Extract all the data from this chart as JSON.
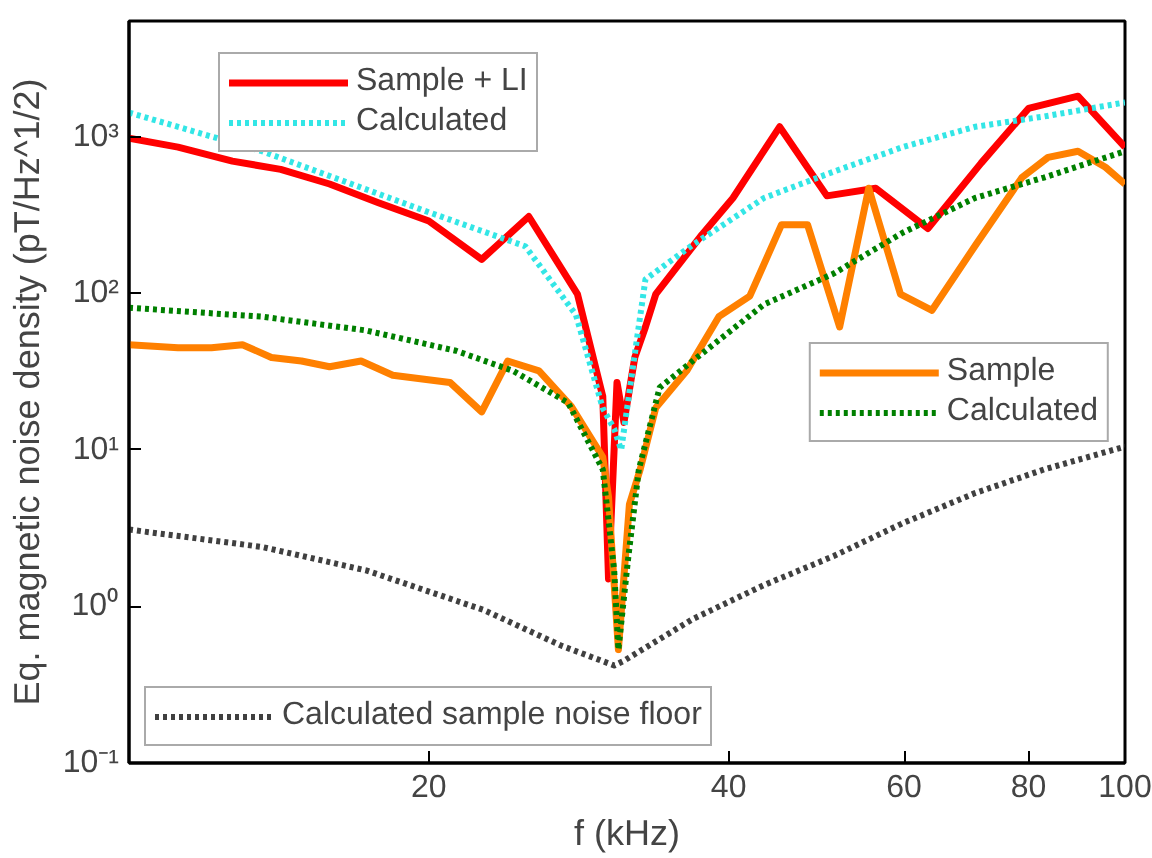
{
  "chart_data": {
    "type": "line",
    "xlabel": "f (kHz)",
    "ylabel": "Eq. magnetic noise density (pT/Hz^1/2)",
    "log": "xy",
    "grid": false,
    "legend": "bottom left",
    "xlim": [
      10,
      100
    ],
    "ylim": [
      0.1,
      5500
    ],
    "xticks": [
      20,
      40,
      60,
      80,
      100
    ],
    "yticks": [
      {
        "value": 0.1,
        "label": "10⁻¹"
      },
      {
        "value": 1,
        "label": "10⁰"
      },
      {
        "value": 10,
        "label": "10¹"
      },
      {
        "value": 100,
        "label": "10²"
      },
      {
        "value": 1000,
        "label": "10³"
      }
    ],
    "series": [
      {
        "name": "Sample + LI",
        "color": "#ff0000",
        "line_style": "solid",
        "x": [
          10,
          11.2,
          12.7,
          14.2,
          15.9,
          17.8,
          20,
          22.6,
          25.2,
          28.2,
          29.9,
          30.3,
          30.9,
          31.4,
          32.2,
          33,
          33.8,
          37.6,
          40.4,
          45,
          50.2,
          56.2,
          63.4,
          71.7,
          80,
          89.7,
          100
        ],
        "values": [
          980,
          860,
          700,
          620,
          500,
          380,
          290,
          165,
          310,
          99,
          22,
          1.5,
          27,
          15,
          39,
          61,
          99,
          237,
          407,
          1160,
          420,
          470,
          260,
          680,
          1520,
          1820,
          860
        ]
      },
      {
        "name": "Calculated",
        "color": "#33e6e6",
        "line_style": "dotted",
        "x": [
          10,
          13.6,
          20,
          25,
          28.1,
          29.9,
          30.7,
          31.2,
          33,
          36.8,
          43.4,
          51,
          59.8,
          70.7,
          82.9,
          100
        ],
        "values": [
          1430,
          810,
          330,
          200,
          73,
          18.5,
          13.6,
          10,
          123,
          204,
          407,
          600,
          860,
          1160,
          1350,
          1660
        ]
      },
      {
        "name": "Sample",
        "color": "#ff8000",
        "line_style": "solid",
        "x": [
          10,
          11.2,
          12.1,
          13,
          13.9,
          14.9,
          15.9,
          17.1,
          18.4,
          21,
          22.6,
          24,
          25.8,
          27.8,
          29.9,
          30.3,
          31,
          31.8,
          32.6,
          33.8,
          36.3,
          39.1,
          42,
          45.2,
          48,
          51.7,
          55.3,
          59.5,
          64,
          70.8,
          78.8,
          83.7,
          89.7,
          95.6,
          100
        ],
        "values": [
          47,
          45,
          45,
          47,
          39,
          37,
          34,
          37,
          30,
          27,
          17.5,
          37,
          32,
          19,
          9,
          5,
          0.53,
          4.5,
          7.5,
          18.6,
          32,
          71,
          96,
          275,
          275,
          61,
          470,
          99,
          78,
          204,
          550,
          740,
          810,
          640,
          500
        ]
      },
      {
        "name": "Calculated",
        "color": "#008000",
        "line_style": "dotted",
        "x": [
          10,
          13.6,
          17.3,
          21.3,
          24.3,
          27.6,
          29.9,
          30.7,
          31,
          31.7,
          32.5,
          34.1,
          36.8,
          43.4,
          51,
          59.8,
          70.7,
          82.9,
          100
        ],
        "values": [
          81,
          71,
          58,
          43,
          32,
          20,
          7.5,
          1.7,
          0.53,
          2,
          7.5,
          25,
          37,
          85,
          134,
          244,
          407,
          550,
          810
        ]
      },
      {
        "name": "Calculated sample noise floor",
        "color": "#404040",
        "line_style": "dotted",
        "x": [
          10,
          13.6,
          17.3,
          22.7,
          27.2,
          30.7,
          31.4,
          36.8,
          43.4,
          51,
          59.8,
          70.7,
          82.9,
          100
        ],
        "values": [
          3.1,
          2.4,
          1.7,
          0.95,
          0.56,
          0.42,
          0.45,
          0.83,
          1.37,
          2.1,
          3.4,
          5.3,
          7.5,
          10.5
        ]
      }
    ]
  }
}
